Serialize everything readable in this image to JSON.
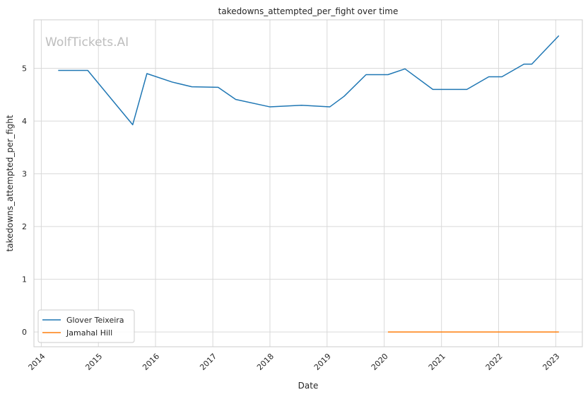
{
  "chart_data": {
    "type": "line",
    "title": "takedowns_attempted_per_fight over time",
    "xlabel": "Date",
    "ylabel": "takedowns_attempted_per_fight",
    "watermark": "WolfTickets.AI",
    "xlim": [
      "2013-11-15",
      "2023-06-20"
    ],
    "ylim": [
      -0.28,
      5.92
    ],
    "x_ticks": [
      "2014-01-01",
      "2015-01-01",
      "2016-01-01",
      "2017-01-01",
      "2018-01-01",
      "2019-01-01",
      "2020-01-01",
      "2021-01-01",
      "2022-01-01",
      "2023-01-01"
    ],
    "x_tick_labels": [
      "2014",
      "2015",
      "2016",
      "2017",
      "2018",
      "2019",
      "2020",
      "2021",
      "2022",
      "2023"
    ],
    "y_ticks": [
      0,
      1,
      2,
      3,
      4,
      5
    ],
    "y_tick_labels": [
      "0",
      "1",
      "2",
      "3",
      "4",
      "5"
    ],
    "grid": true,
    "legend_position": "bottom-left",
    "series": [
      {
        "name": "Glover Teixeira",
        "color": "#1f77b4",
        "points": [
          {
            "x": "2014-04-19",
            "y": 4.96
          },
          {
            "x": "2014-10-25",
            "y": 4.96
          },
          {
            "x": "2015-08-08",
            "y": 3.93
          },
          {
            "x": "2015-11-07",
            "y": 4.9
          },
          {
            "x": "2016-04-16",
            "y": 4.74
          },
          {
            "x": "2016-08-20",
            "y": 4.65
          },
          {
            "x": "2017-02-04",
            "y": 4.64
          },
          {
            "x": "2017-05-27",
            "y": 4.41
          },
          {
            "x": "2017-12-30",
            "y": 4.27
          },
          {
            "x": "2018-07-22",
            "y": 4.3
          },
          {
            "x": "2019-01-19",
            "y": 4.27
          },
          {
            "x": "2019-04-20",
            "y": 4.47
          },
          {
            "x": "2019-09-07",
            "y": 4.88
          },
          {
            "x": "2020-01-25",
            "y": 4.88
          },
          {
            "x": "2020-05-13",
            "y": 4.99
          },
          {
            "x": "2020-11-07",
            "y": 4.6
          },
          {
            "x": "2021-06-12",
            "y": 4.6
          },
          {
            "x": "2021-10-30",
            "y": 4.84
          },
          {
            "x": "2022-01-22",
            "y": 4.84
          },
          {
            "x": "2022-06-12",
            "y": 5.08
          },
          {
            "x": "2022-08-01",
            "y": 5.08
          },
          {
            "x": "2023-01-21",
            "y": 5.62
          }
        ]
      },
      {
        "name": "Jamahal Hill",
        "color": "#ff7f0e",
        "points": [
          {
            "x": "2020-01-25",
            "y": 0
          },
          {
            "x": "2020-08-01",
            "y": 0
          },
          {
            "x": "2020-12-19",
            "y": 0
          },
          {
            "x": "2021-04-10",
            "y": 0
          },
          {
            "x": "2021-08-21",
            "y": 0
          },
          {
            "x": "2022-02-19",
            "y": 0
          },
          {
            "x": "2022-08-06",
            "y": 0
          },
          {
            "x": "2023-01-21",
            "y": 0
          }
        ]
      }
    ]
  }
}
